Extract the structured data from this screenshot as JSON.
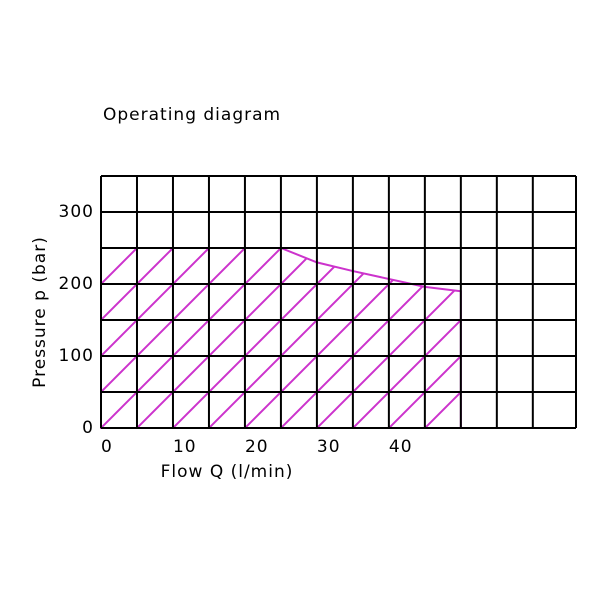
{
  "chart_data": {
    "type": "area",
    "title": "Operating diagram",
    "x_label": "Flow Q (l/min)",
    "y_label": "Pressure p (bar)",
    "x": [
      0,
      25,
      30,
      35,
      45,
      50
    ],
    "values": [
      250,
      250,
      230,
      218,
      196,
      190
    ],
    "color": "#cc33cc",
    "hatch": true,
    "xlim": [
      0,
      66
    ],
    "ylim": [
      0,
      350
    ],
    "xticks": [
      0,
      10,
      20,
      30,
      40
    ],
    "yticks": [
      0,
      100,
      200,
      300
    ],
    "xgrid": [
      0,
      5,
      10,
      15,
      20,
      25,
      30,
      35,
      40,
      45,
      50,
      55,
      60,
      66
    ],
    "ygrid": [
      0,
      50,
      100,
      150,
      200,
      250,
      300,
      350
    ]
  }
}
